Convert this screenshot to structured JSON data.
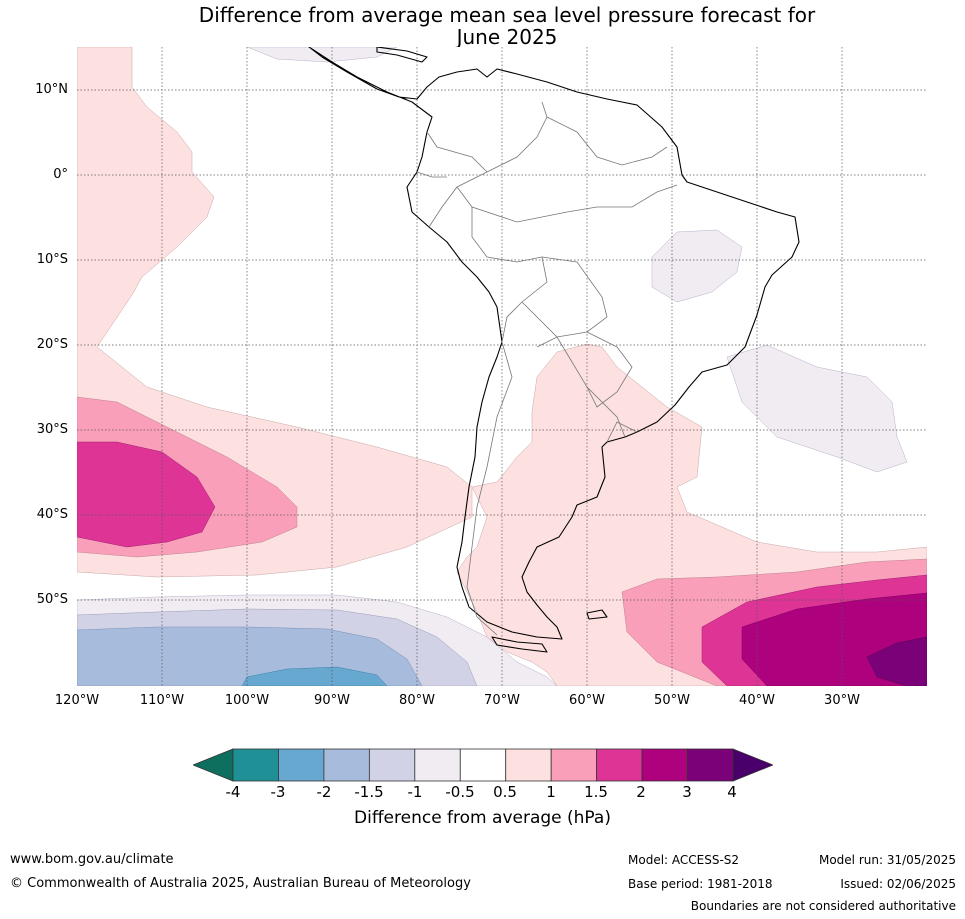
{
  "title_line1": "Difference from average mean sea level pressure forecast for",
  "title_line2": "June 2025",
  "lat_labels": [
    "10°N",
    "0°",
    "10°S",
    "20°S",
    "30°S",
    "40°S",
    "50°S"
  ],
  "lon_labels": [
    "120°W",
    "110°W",
    "100°W",
    "90°W",
    "80°W",
    "70°W",
    "60°W",
    "50°W",
    "40°W",
    "30°W"
  ],
  "colorbar": {
    "ticks": [
      "-4",
      "-3",
      "-2",
      "-1.5",
      "-1",
      "-0.5",
      "0.5",
      "1",
      "1.5",
      "2",
      "3",
      "4"
    ],
    "colors": [
      "#0e6f5f",
      "#1f9196",
      "#66a8d0",
      "#a7bbdc",
      "#d2d2e6",
      "#f0ecf2",
      "#ffffff",
      "#fde0e0",
      "#f99fba",
      "#dd3496",
      "#ae017e",
      "#7a0177",
      "#49006a"
    ],
    "label": "Difference from average (hPa)"
  },
  "footer": {
    "website": "www.bom.gov.au/climate",
    "copyright": "© Commonwealth of Australia 2025, Australian Bureau of Meteorology",
    "model": "Model: ACCESS-S2",
    "base_period": "Base period: 1981-2018",
    "model_run": "Model run: 31/05/2025",
    "issued": "Issued: 02/06/2025",
    "disclaimer": "Boundaries are not considered authoritative"
  }
}
